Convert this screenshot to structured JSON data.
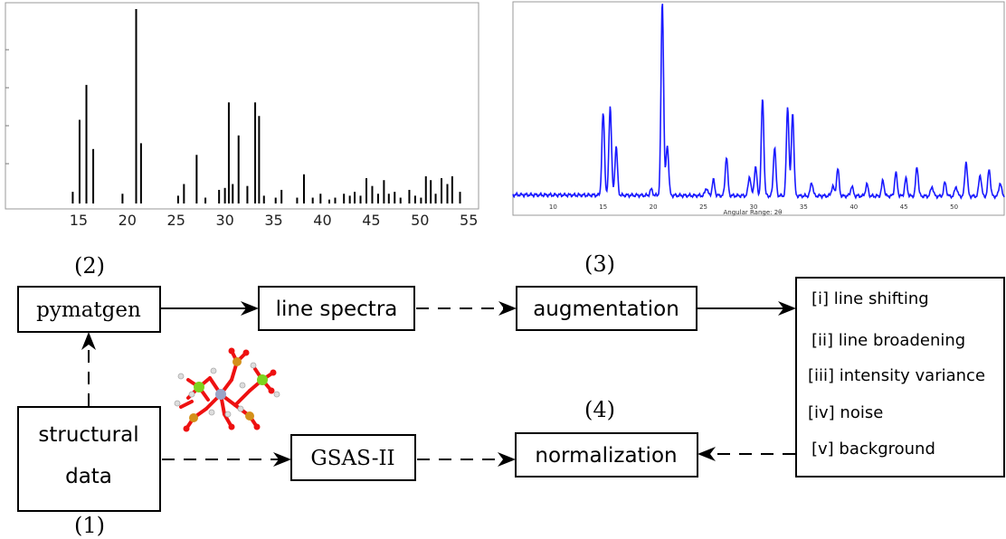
{
  "chart_data": [
    {
      "type": "bar",
      "title": "",
      "xlabel": "",
      "ylabel": "",
      "xlim": [
        7.5,
        56
      ],
      "ylim": [
        0,
        100
      ],
      "xticks": [
        "15",
        "20",
        "25",
        "30",
        "35",
        "40",
        "45",
        "50",
        "55"
      ],
      "x": [
        14.4,
        15.1,
        15.8,
        16.5,
        19.5,
        20.9,
        21.4,
        25.2,
        25.8,
        27.1,
        28.0,
        29.4,
        30.0,
        30.4,
        30.8,
        31.4,
        32.3,
        33.1,
        33.5,
        34.0,
        35.2,
        35.8,
        37.4,
        38.1,
        39.0,
        39.8,
        40.7,
        41.3,
        42.2,
        42.8,
        43.3,
        43.9,
        44.5,
        45.1,
        45.7,
        46.3,
        46.8,
        47.4,
        48.0,
        48.9,
        49.5,
        50.1,
        50.6,
        51.1,
        51.6,
        52.2,
        52.8,
        53.3,
        54.1
      ],
      "values": [
        6,
        43,
        61,
        28,
        5,
        100,
        31,
        4,
        10,
        25,
        3,
        7,
        8,
        52,
        10,
        35,
        9,
        52,
        45,
        4,
        3,
        7,
        3,
        15,
        3,
        5,
        2,
        3,
        5,
        4,
        6,
        4,
        13,
        9,
        5,
        12,
        5,
        6,
        3,
        7,
        4,
        3,
        14,
        12,
        5,
        13,
        10,
        14,
        6
      ]
    },
    {
      "type": "line",
      "title": "",
      "xlabel": "Angular Range: 2θ",
      "ylabel": "",
      "color": "#1a1aff",
      "xlim": [
        6,
        55
      ],
      "xticks": [
        "10",
        "15",
        "20",
        "25",
        "30",
        "35",
        "40",
        "45",
        "50"
      ],
      "peaks": [
        {
          "x": 15.0,
          "h": 0.42
        },
        {
          "x": 15.7,
          "h": 0.46
        },
        {
          "x": 16.3,
          "h": 0.25
        },
        {
          "x": 19.8,
          "h": 0.03
        },
        {
          "x": 20.9,
          "h": 1.0
        },
        {
          "x": 21.4,
          "h": 0.26
        },
        {
          "x": 25.3,
          "h": 0.04
        },
        {
          "x": 26.0,
          "h": 0.08
        },
        {
          "x": 27.3,
          "h": 0.2
        },
        {
          "x": 29.6,
          "h": 0.1
        },
        {
          "x": 30.2,
          "h": 0.15
        },
        {
          "x": 30.9,
          "h": 0.5
        },
        {
          "x": 32.1,
          "h": 0.25
        },
        {
          "x": 33.4,
          "h": 0.46
        },
        {
          "x": 33.9,
          "h": 0.43
        },
        {
          "x": 35.8,
          "h": 0.07
        },
        {
          "x": 37.9,
          "h": 0.05
        },
        {
          "x": 38.4,
          "h": 0.14
        },
        {
          "x": 39.8,
          "h": 0.05
        },
        {
          "x": 41.3,
          "h": 0.06
        },
        {
          "x": 42.9,
          "h": 0.08
        },
        {
          "x": 44.2,
          "h": 0.12
        },
        {
          "x": 45.2,
          "h": 0.09
        },
        {
          "x": 46.3,
          "h": 0.15
        },
        {
          "x": 47.8,
          "h": 0.05
        },
        {
          "x": 49.1,
          "h": 0.07
        },
        {
          "x": 50.2,
          "h": 0.05
        },
        {
          "x": 51.2,
          "h": 0.18
        },
        {
          "x": 52.6,
          "h": 0.11
        },
        {
          "x": 53.5,
          "h": 0.14
        },
        {
          "x": 54.6,
          "h": 0.07
        }
      ],
      "baseline": 0.04
    }
  ],
  "diagram": {
    "nodes": {
      "pymatgen": "pymatgen",
      "line_spectra": "line spectra",
      "augmentation": "augmentation",
      "structural_line1": "structural",
      "structural_line2": "data",
      "gsas": "GSAS-II",
      "normalization": "normalization"
    },
    "step_labels": {
      "step1": "(1)",
      "step2": "(2)",
      "step3": "(3)",
      "step4": "(4)"
    },
    "augmentation_list": [
      "[i] line shifting",
      "[ii] line broadening",
      "[iii] intensity variance",
      "[iv] noise",
      "[v] background"
    ]
  }
}
